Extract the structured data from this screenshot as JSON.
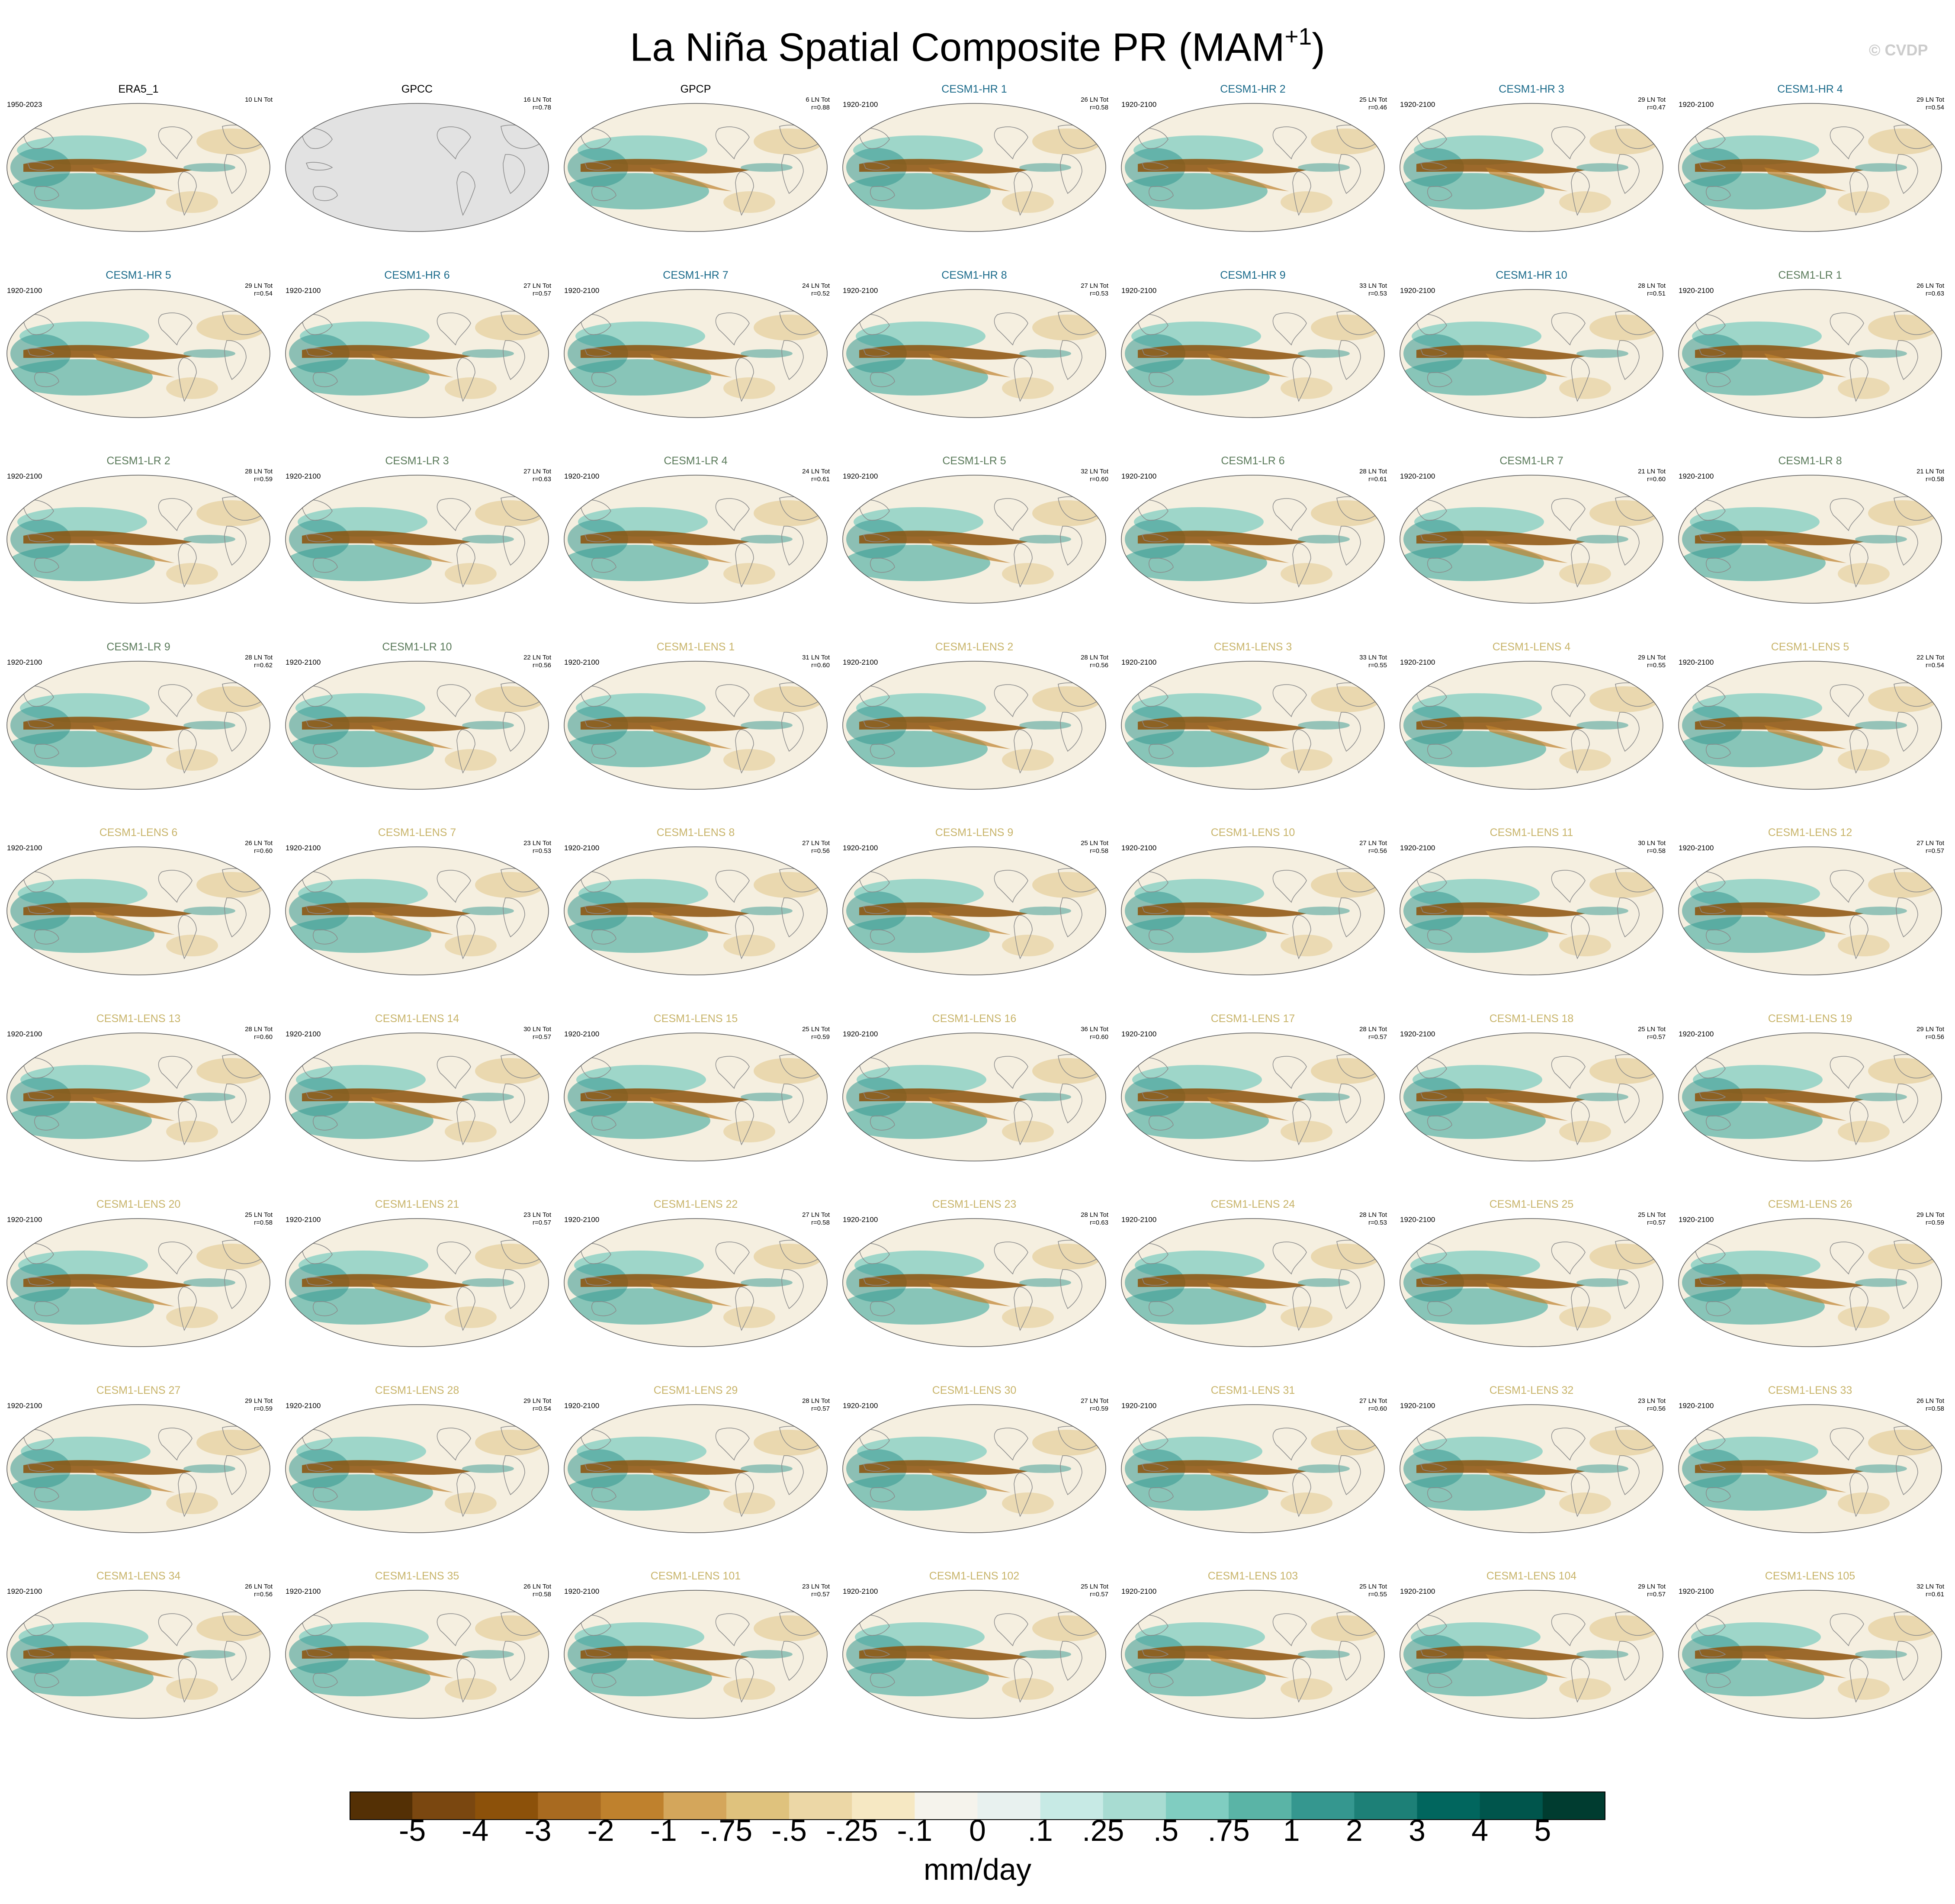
{
  "title": "La Niña Spatial Composite PR (MAM",
  "title_sup": "+1",
  "title_close": ")",
  "watermark": "© CVDP",
  "colors": {
    "brown_strong": "#8c510a",
    "teal_strong": "#01665e",
    "ocean_neutral": "#f5efe0",
    "missing": "#e2e2e2"
  },
  "legend": {
    "units": "mm/day",
    "tick_labels": [
      "-5",
      "-4",
      "-3",
      "-2",
      "-1",
      "-.75",
      "-.5",
      "-.25",
      "-.1",
      "0",
      ".1",
      ".25",
      ".5",
      ".75",
      "1",
      "2",
      "3",
      "4",
      "5"
    ],
    "colors": [
      "#543005",
      "#7a4710",
      "#8c510a",
      "#a86a20",
      "#bf812d",
      "#d4a65b",
      "#dfc27d",
      "#ecd7a6",
      "#f6e8c3",
      "#f5f3ec",
      "#e8f1ef",
      "#c7eae5",
      "#a8dcd2",
      "#80cdc1",
      "#5ab4a6",
      "#35978f",
      "#1d8077",
      "#01665e",
      "#00554c",
      "#003c30"
    ]
  },
  "panels": [
    {
      "title": "ERA5_1",
      "color": "#000000",
      "period": "1950-2023",
      "count": "10 LN Tot",
      "r": ""
    },
    {
      "title": "GPCC",
      "color": "#000000",
      "period": "",
      "count": "16 LN Tot",
      "r": "r=0.78"
    },
    {
      "title": "GPCP",
      "color": "#000000",
      "period": "",
      "count": "6 LN Tot",
      "r": "r=0.88"
    },
    {
      "title": "CESM1-HR 1",
      "color": "#1a6a8a",
      "period": "1920-2100",
      "count": "26 LN Tot",
      "r": "r=0.58"
    },
    {
      "title": "CESM1-HR 2",
      "color": "#1a6a8a",
      "period": "1920-2100",
      "count": "25 LN Tot",
      "r": "r=0.46"
    },
    {
      "title": "CESM1-HR 3",
      "color": "#1a6a8a",
      "period": "1920-2100",
      "count": "29 LN Tot",
      "r": "r=0.47"
    },
    {
      "title": "CESM1-HR 4",
      "color": "#1a6a8a",
      "period": "1920-2100",
      "count": "29 LN Tot",
      "r": "r=0.54"
    },
    {
      "title": "CESM1-HR 5",
      "color": "#1a6a8a",
      "period": "1920-2100",
      "count": "29 LN Tot",
      "r": "r=0.54"
    },
    {
      "title": "CESM1-HR 6",
      "color": "#1a6a8a",
      "period": "1920-2100",
      "count": "27 LN Tot",
      "r": "r=0.57"
    },
    {
      "title": "CESM1-HR 7",
      "color": "#1a6a8a",
      "period": "1920-2100",
      "count": "24 LN Tot",
      "r": "r=0.52"
    },
    {
      "title": "CESM1-HR 8",
      "color": "#1a6a8a",
      "period": "1920-2100",
      "count": "27 LN Tot",
      "r": "r=0.53"
    },
    {
      "title": "CESM1-HR 9",
      "color": "#1a6a8a",
      "period": "1920-2100",
      "count": "33 LN Tot",
      "r": "r=0.53"
    },
    {
      "title": "CESM1-HR 10",
      "color": "#1a6a8a",
      "period": "1920-2100",
      "count": "28 LN Tot",
      "r": "r=0.51"
    },
    {
      "title": "CESM1-LR 1",
      "color": "#5a7a5a",
      "period": "1920-2100",
      "count": "26 LN Tot",
      "r": "r=0.63"
    },
    {
      "title": "CESM1-LR 2",
      "color": "#5a7a5a",
      "period": "1920-2100",
      "count": "28 LN Tot",
      "r": "r=0.59"
    },
    {
      "title": "CESM1-LR 3",
      "color": "#5a7a5a",
      "period": "1920-2100",
      "count": "27 LN Tot",
      "r": "r=0.63"
    },
    {
      "title": "CESM1-LR 4",
      "color": "#5a7a5a",
      "period": "1920-2100",
      "count": "24 LN Tot",
      "r": "r=0.61"
    },
    {
      "title": "CESM1-LR 5",
      "color": "#5a7a5a",
      "period": "1920-2100",
      "count": "32 LN Tot",
      "r": "r=0.60"
    },
    {
      "title": "CESM1-LR 6",
      "color": "#5a7a5a",
      "period": "1920-2100",
      "count": "28 LN Tot",
      "r": "r=0.61"
    },
    {
      "title": "CESM1-LR 7",
      "color": "#5a7a5a",
      "period": "1920-2100",
      "count": "21 LN Tot",
      "r": "r=0.60"
    },
    {
      "title": "CESM1-LR 8",
      "color": "#5a7a5a",
      "period": "1920-2100",
      "count": "21 LN Tot",
      "r": "r=0.58"
    },
    {
      "title": "CESM1-LR 9",
      "color": "#5a7a5a",
      "period": "1920-2100",
      "count": "28 LN Tot",
      "r": "r=0.62"
    },
    {
      "title": "CESM1-LR 10",
      "color": "#5a7a5a",
      "period": "1920-2100",
      "count": "22 LN Tot",
      "r": "r=0.56"
    },
    {
      "title": "CESM1-LENS 1",
      "color": "#c8b46a",
      "period": "1920-2100",
      "count": "31 LN Tot",
      "r": "r=0.60"
    },
    {
      "title": "CESM1-LENS 2",
      "color": "#c8b46a",
      "period": "1920-2100",
      "count": "28 LN Tot",
      "r": "r=0.56"
    },
    {
      "title": "CESM1-LENS 3",
      "color": "#c8b46a",
      "period": "1920-2100",
      "count": "33 LN Tot",
      "r": "r=0.55"
    },
    {
      "title": "CESM1-LENS 4",
      "color": "#c8b46a",
      "period": "1920-2100",
      "count": "29 LN Tot",
      "r": "r=0.55"
    },
    {
      "title": "CESM1-LENS 5",
      "color": "#c8b46a",
      "period": "1920-2100",
      "count": "22 LN Tot",
      "r": "r=0.54"
    },
    {
      "title": "CESM1-LENS 6",
      "color": "#c8b46a",
      "period": "1920-2100",
      "count": "26 LN Tot",
      "r": "r=0.60"
    },
    {
      "title": "CESM1-LENS 7",
      "color": "#c8b46a",
      "period": "1920-2100",
      "count": "23 LN Tot",
      "r": "r=0.53"
    },
    {
      "title": "CESM1-LENS 8",
      "color": "#c8b46a",
      "period": "1920-2100",
      "count": "27 LN Tot",
      "r": "r=0.56"
    },
    {
      "title": "CESM1-LENS 9",
      "color": "#c8b46a",
      "period": "1920-2100",
      "count": "25 LN Tot",
      "r": "r=0.58"
    },
    {
      "title": "CESM1-LENS 10",
      "color": "#c8b46a",
      "period": "1920-2100",
      "count": "27 LN Tot",
      "r": "r=0.56"
    },
    {
      "title": "CESM1-LENS 11",
      "color": "#c8b46a",
      "period": "1920-2100",
      "count": "30 LN Tot",
      "r": "r=0.58"
    },
    {
      "title": "CESM1-LENS 12",
      "color": "#c8b46a",
      "period": "1920-2100",
      "count": "27 LN Tot",
      "r": "r=0.57"
    },
    {
      "title": "CESM1-LENS 13",
      "color": "#c8b46a",
      "period": "1920-2100",
      "count": "28 LN Tot",
      "r": "r=0.60"
    },
    {
      "title": "CESM1-LENS 14",
      "color": "#c8b46a",
      "period": "1920-2100",
      "count": "30 LN Tot",
      "r": "r=0.57"
    },
    {
      "title": "CESM1-LENS 15",
      "color": "#c8b46a",
      "period": "1920-2100",
      "count": "25 LN Tot",
      "r": "r=0.59"
    },
    {
      "title": "CESM1-LENS 16",
      "color": "#c8b46a",
      "period": "1920-2100",
      "count": "36 LN Tot",
      "r": "r=0.60"
    },
    {
      "title": "CESM1-LENS 17",
      "color": "#c8b46a",
      "period": "1920-2100",
      "count": "28 LN Tot",
      "r": "r=0.57"
    },
    {
      "title": "CESM1-LENS 18",
      "color": "#c8b46a",
      "period": "1920-2100",
      "count": "25 LN Tot",
      "r": "r=0.57"
    },
    {
      "title": "CESM1-LENS 19",
      "color": "#c8b46a",
      "period": "1920-2100",
      "count": "29 LN Tot",
      "r": "r=0.56"
    },
    {
      "title": "CESM1-LENS 20",
      "color": "#c8b46a",
      "period": "1920-2100",
      "count": "25 LN Tot",
      "r": "r=0.58"
    },
    {
      "title": "CESM1-LENS 21",
      "color": "#c8b46a",
      "period": "1920-2100",
      "count": "23 LN Tot",
      "r": "r=0.57"
    },
    {
      "title": "CESM1-LENS 22",
      "color": "#c8b46a",
      "period": "1920-2100",
      "count": "27 LN Tot",
      "r": "r=0.58"
    },
    {
      "title": "CESM1-LENS 23",
      "color": "#c8b46a",
      "period": "1920-2100",
      "count": "28 LN Tot",
      "r": "r=0.63"
    },
    {
      "title": "CESM1-LENS 24",
      "color": "#c8b46a",
      "period": "1920-2100",
      "count": "28 LN Tot",
      "r": "r=0.53"
    },
    {
      "title": "CESM1-LENS 25",
      "color": "#c8b46a",
      "period": "1920-2100",
      "count": "25 LN Tot",
      "r": "r=0.57"
    },
    {
      "title": "CESM1-LENS 26",
      "color": "#c8b46a",
      "period": "1920-2100",
      "count": "29 LN Tot",
      "r": "r=0.59"
    },
    {
      "title": "CESM1-LENS 27",
      "color": "#c8b46a",
      "period": "1920-2100",
      "count": "29 LN Tot",
      "r": "r=0.59"
    },
    {
      "title": "CESM1-LENS 28",
      "color": "#c8b46a",
      "period": "1920-2100",
      "count": "29 LN Tot",
      "r": "r=0.54"
    },
    {
      "title": "CESM1-LENS 29",
      "color": "#c8b46a",
      "period": "1920-2100",
      "count": "28 LN Tot",
      "r": "r=0.57"
    },
    {
      "title": "CESM1-LENS 30",
      "color": "#c8b46a",
      "period": "1920-2100",
      "count": "27 LN Tot",
      "r": "r=0.59"
    },
    {
      "title": "CESM1-LENS 31",
      "color": "#c8b46a",
      "period": "1920-2100",
      "count": "27 LN Tot",
      "r": "r=0.60"
    },
    {
      "title": "CESM1-LENS 32",
      "color": "#c8b46a",
      "period": "1920-2100",
      "count": "23 LN Tot",
      "r": "r=0.56"
    },
    {
      "title": "CESM1-LENS 33",
      "color": "#c8b46a",
      "period": "1920-2100",
      "count": "26 LN Tot",
      "r": "r=0.58"
    },
    {
      "title": "CESM1-LENS 34",
      "color": "#c8b46a",
      "period": "1920-2100",
      "count": "26 LN Tot",
      "r": "r=0.56"
    },
    {
      "title": "CESM1-LENS 35",
      "color": "#c8b46a",
      "period": "1920-2100",
      "count": "26 LN Tot",
      "r": "r=0.58"
    },
    {
      "title": "CESM1-LENS 101",
      "color": "#c8b46a",
      "period": "1920-2100",
      "count": "23 LN Tot",
      "r": "r=0.57"
    },
    {
      "title": "CESM1-LENS 102",
      "color": "#c8b46a",
      "period": "1920-2100",
      "count": "25 LN Tot",
      "r": "r=0.57"
    },
    {
      "title": "CESM1-LENS 103",
      "color": "#c8b46a",
      "period": "1920-2100",
      "count": "25 LN Tot",
      "r": "r=0.55"
    },
    {
      "title": "CESM1-LENS 104",
      "color": "#c8b46a",
      "period": "1920-2100",
      "count": "29 LN Tot",
      "r": "r=0.57"
    },
    {
      "title": "CESM1-LENS 105",
      "color": "#c8b46a",
      "period": "1920-2100",
      "count": "32 LN Tot",
      "r": "r=0.61"
    }
  ]
}
